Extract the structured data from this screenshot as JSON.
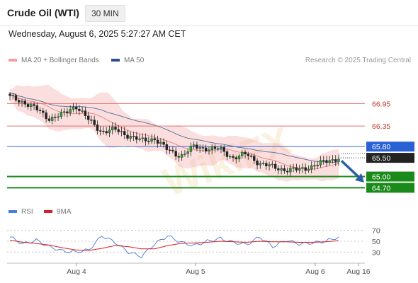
{
  "header": {
    "title": "Crude Oil (WTI)",
    "timeframe": "30 MIN"
  },
  "datetime": "Wednesday, August 6, 2025 5:27:27 AM CET",
  "legend": {
    "ma_bb_label": "MA 20 + Bollinger Bands",
    "ma50_label": "MA 50",
    "credit": "Research © 2025 Trading Central",
    "rsi_label": "RSI",
    "rsi_ma_label": "9MA"
  },
  "colors": {
    "bollinger": "#f4a0a0",
    "ma50": "#2c4f8c",
    "resistance": "#e07070",
    "pivot": "#3a6bd8",
    "support": "#1e8a1e",
    "rsi": "#4a7bd8",
    "rsi_ma": "#d81e1e",
    "arrow": "#2a5fa8"
  },
  "chart_data": [
    {
      "type": "candlestick",
      "x_tick_labels": [
        "Aug 4",
        "Aug 5",
        "Aug 6",
        "Aug 16"
      ],
      "ylim": [
        64.5,
        67.6
      ],
      "levels": [
        {
          "value": 66.95,
          "label": "66.95",
          "kind": "resistance"
        },
        {
          "value": 66.35,
          "label": "66.35",
          "kind": "resistance"
        },
        {
          "value": 65.8,
          "label": "65.80",
          "kind": "pivot"
        },
        {
          "value": 65.5,
          "label": "65.50",
          "kind": "last"
        },
        {
          "value": 65.0,
          "label": "65.00",
          "kind": "support"
        },
        {
          "value": 64.7,
          "label": "64.70",
          "kind": "support"
        }
      ],
      "price_path": [
        67.12,
        67.0,
        66.8,
        66.55,
        66.65,
        66.9,
        66.5,
        66.2,
        66.25,
        66.1,
        65.95,
        66.02,
        65.7,
        65.55,
        65.8,
        65.75,
        65.72,
        65.5,
        65.6,
        65.35,
        65.25,
        65.18,
        65.18,
        65.28,
        65.4,
        65.5
      ],
      "projection": "down",
      "legend": [
        "MA 20 + Bollinger Bands",
        "MA 50"
      ]
    },
    {
      "type": "line",
      "title": "RSI",
      "y_ticks": [
        30,
        50,
        70
      ],
      "ylim": [
        20,
        80
      ],
      "series": [
        {
          "name": "RSI",
          "values": [
            58,
            45,
            52,
            40,
            32,
            30,
            34,
            60,
            48,
            30,
            22,
            45,
            60,
            48,
            42,
            50,
            55,
            48,
            44,
            58,
            40,
            52,
            45,
            47,
            50,
            58
          ]
        },
        {
          "name": "9MA",
          "values": [
            52,
            48,
            46,
            43,
            38,
            34,
            33,
            37,
            42,
            40,
            36,
            36,
            42,
            46,
            47,
            48,
            50,
            49,
            48,
            50,
            49,
            49,
            48,
            48,
            49,
            51
          ]
        }
      ]
    }
  ]
}
